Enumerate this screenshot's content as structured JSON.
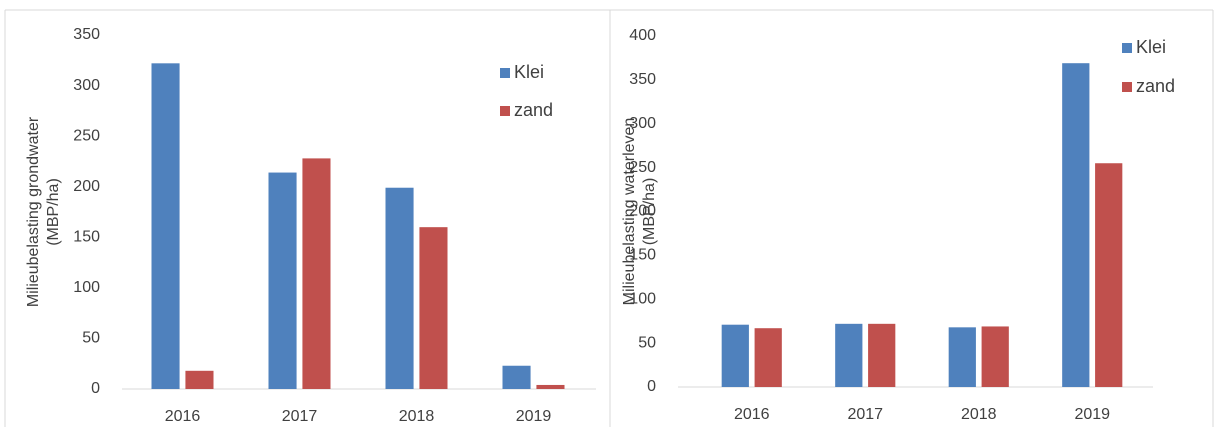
{
  "chart_data": [
    {
      "type": "bar",
      "ylabel": [
        "Milieubelasting grondwater",
        "(MBP/ha)"
      ],
      "categories": [
        "2016",
        "2017",
        "2018",
        "2019"
      ],
      "series": [
        {
          "name": "Klei",
          "color": "#4f81bd",
          "values": [
            322,
            214,
            199,
            23
          ]
        },
        {
          "name": "zand",
          "color": "#c0504d",
          "values": [
            18,
            228,
            160,
            4
          ]
        }
      ],
      "ylim": [
        0,
        350
      ],
      "yticks": [
        0,
        50,
        100,
        150,
        200,
        250,
        300,
        350
      ],
      "grid": false
    },
    {
      "type": "bar",
      "ylabel": [
        "Milieubelasting waterleven",
        "(MBP/ha)"
      ],
      "categories": [
        "2016",
        "2017",
        "2018",
        "2019"
      ],
      "series": [
        {
          "name": "Klei",
          "color": "#4f81bd",
          "values": [
            71,
            72,
            68,
            369
          ]
        },
        {
          "name": "zand",
          "color": "#c0504d",
          "values": [
            67,
            72,
            69,
            255
          ]
        }
      ],
      "ylim": [
        0,
        400
      ],
      "yticks": [
        0,
        50,
        100,
        150,
        200,
        250,
        300,
        350,
        400
      ],
      "grid": false
    }
  ]
}
